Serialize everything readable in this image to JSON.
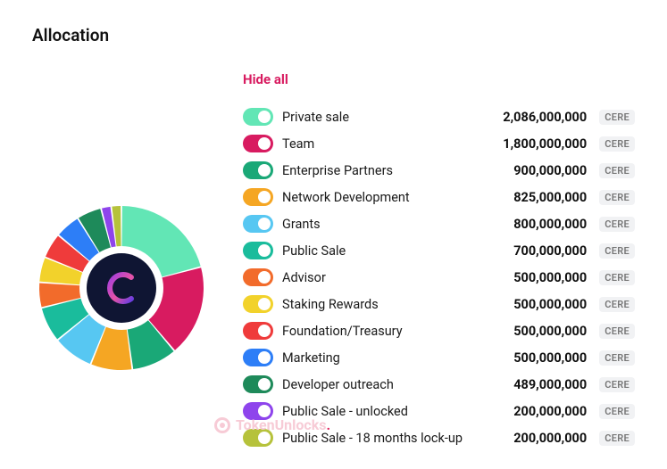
{
  "title": "Allocation",
  "hide_all_label": "Hide all",
  "ticker": "CERE",
  "watermark": "TokenUnlocks",
  "chart": {
    "type": "donut",
    "background_color": "#ffffff",
    "inner_radius_ratio": 0.46,
    "center_background": "#0f1533",
    "center_logo_gradient": [
      "#a13ee0",
      "#e653a6",
      "#6a3de0"
    ]
  },
  "allocations": [
    {
      "label": "Private sale",
      "value": 2086000000,
      "display": "2,086,000,000",
      "color": "#62e6b5"
    },
    {
      "label": "Team",
      "value": 1800000000,
      "display": "1,800,000,000",
      "color": "#d81b60"
    },
    {
      "label": "Enterprise Partners",
      "value": 900000000,
      "display": "900,000,000",
      "color": "#1aa877"
    },
    {
      "label": "Network Development",
      "value": 825000000,
      "display": "825,000,000",
      "color": "#f5a623"
    },
    {
      "label": "Grants",
      "value": 800000000,
      "display": "800,000,000",
      "color": "#57c7f2"
    },
    {
      "label": "Public Sale",
      "value": 700000000,
      "display": "700,000,000",
      "color": "#1abc9c"
    },
    {
      "label": "Advisor",
      "value": 500000000,
      "display": "500,000,000",
      "color": "#f26b2b"
    },
    {
      "label": "Staking Rewards",
      "value": 500000000,
      "display": "500,000,000",
      "color": "#f2d22b"
    },
    {
      "label": "Foundation/Treasury",
      "value": 500000000,
      "display": "500,000,000",
      "color": "#ef3b3b"
    },
    {
      "label": "Marketing",
      "value": 500000000,
      "display": "500,000,000",
      "color": "#2d7ef7"
    },
    {
      "label": "Developer outreach",
      "value": 489000000,
      "display": "489,000,000",
      "color": "#1e8a5a"
    },
    {
      "label": "Public Sale - unlocked",
      "value": 200000000,
      "display": "200,000,000",
      "color": "#8e44ec"
    },
    {
      "label": "Public Sale - 18 months lock-up",
      "value": 200000000,
      "display": "200,000,000",
      "color": "#b6c23b"
    }
  ]
}
